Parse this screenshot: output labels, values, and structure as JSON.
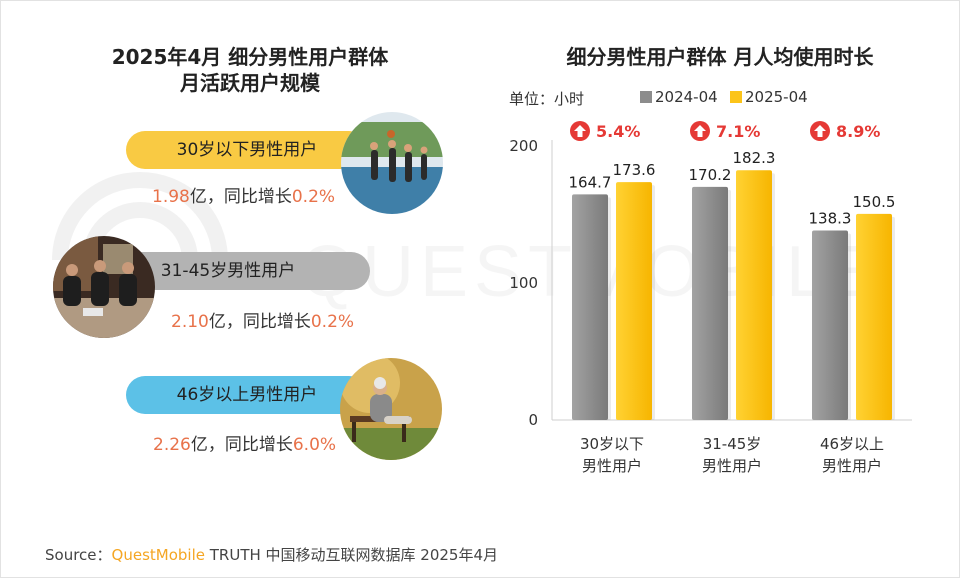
{
  "left_panel": {
    "title_line1": "2025年4月 细分男性用户群体",
    "title_line2": "月活跃用户规模",
    "groups": [
      {
        "label": "30岁以下男性用户",
        "value": "1.98",
        "unit_text": "亿，同比增长",
        "growth": "0.2%",
        "color": "#f9ca43",
        "photo": "basketball-players-photo"
      },
      {
        "label": "31-45岁男性用户",
        "value": "2.10",
        "unit_text": "亿，同比增长",
        "growth": "0.2%",
        "color": "#b3b3b3",
        "photo": "business-meeting-photo"
      },
      {
        "label": "46岁以上男性用户",
        "value": "2.26",
        "unit_text": "亿，同比增长",
        "growth": "6.0%",
        "color": "#5cc1e7",
        "photo": "elderly-man-bench-photo"
      }
    ]
  },
  "chart_data": {
    "type": "bar",
    "title": "细分男性用户群体 月人均使用时长",
    "unit_label": "单位：小时",
    "categories": [
      [
        "30岁以下",
        "男性用户"
      ],
      [
        "31-45岁",
        "男性用户"
      ],
      [
        "46岁以上",
        "男性用户"
      ]
    ],
    "series": [
      {
        "name": "2024-04",
        "values": [
          164.7,
          170.2,
          138.3
        ],
        "color": "#8c8c8c"
      },
      {
        "name": "2025-04",
        "values": [
          173.6,
          182.3,
          150.5
        ],
        "color": "#fcc419"
      }
    ],
    "growth": [
      "5.4%",
      "7.1%",
      "8.9%"
    ],
    "growth_color": "#e53935",
    "ylim": [
      0,
      200
    ],
    "yticks": [
      0,
      100,
      200
    ],
    "legend_position": "top",
    "grid": false
  },
  "watermark": "QUESTMOBILE",
  "source": {
    "prefix": "Source：",
    "brand": "QuestMobile",
    "rest": " TRUTH 中国移动互联网数据库 2025年4月"
  }
}
